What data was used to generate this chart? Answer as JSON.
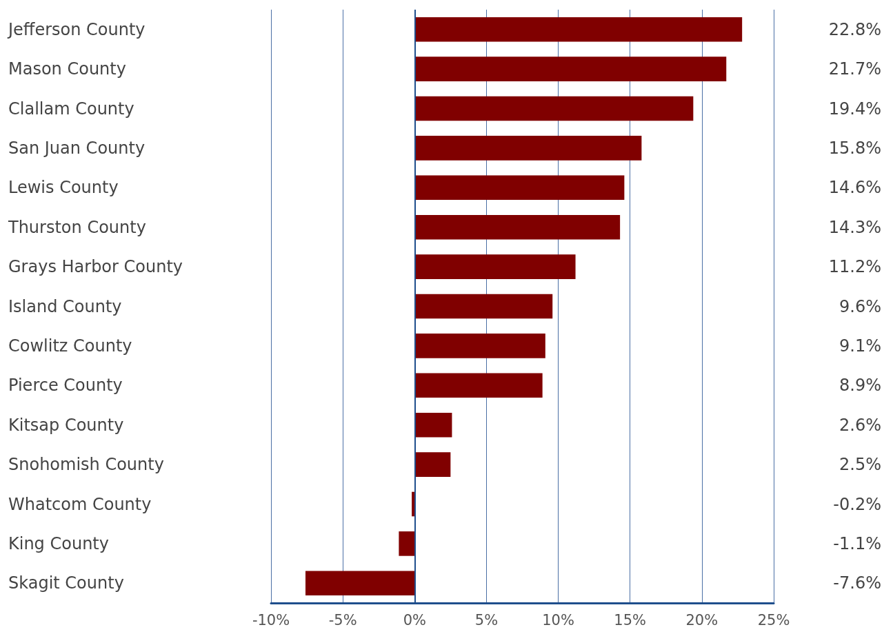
{
  "chart_data": {
    "type": "bar",
    "orientation": "horizontal",
    "categories": [
      "Jefferson County",
      "Mason County",
      "Clallam County",
      "San Juan County",
      "Lewis County",
      "Thurston County",
      "Grays Harbor County",
      "Island County",
      "Cowlitz County",
      "Pierce County",
      "Kitsap County",
      "Snohomish County",
      "Whatcom County",
      "King County",
      "Skagit County"
    ],
    "values": [
      22.8,
      21.7,
      19.4,
      15.8,
      14.6,
      14.3,
      11.2,
      9.6,
      9.1,
      8.9,
      2.6,
      2.5,
      -0.2,
      -1.1,
      -7.6
    ],
    "value_labels": [
      "22.8%",
      "21.7%",
      "19.4%",
      "15.8%",
      "14.6%",
      "14.3%",
      "11.2%",
      "9.6%",
      "9.1%",
      "8.9%",
      "2.6%",
      "2.5%",
      "-0.2%",
      "-1.1%",
      "-7.6%"
    ],
    "color": "#800000",
    "xlim": [
      -10,
      25
    ],
    "xticks": [
      {
        "value": -10,
        "label": "-10%"
      },
      {
        "value": -5,
        "label": "-5%"
      },
      {
        "value": 0,
        "label": "0%"
      },
      {
        "value": 5,
        "label": "5%"
      },
      {
        "value": 10,
        "label": "10%"
      },
      {
        "value": 15,
        "label": "15%"
      },
      {
        "value": 20,
        "label": "20%"
      },
      {
        "value": 25,
        "label": "25%"
      }
    ],
    "grid": "x",
    "ref_lines": [
      {
        "axis": "x",
        "value": 0,
        "color": "#1f4e8c"
      }
    ]
  }
}
